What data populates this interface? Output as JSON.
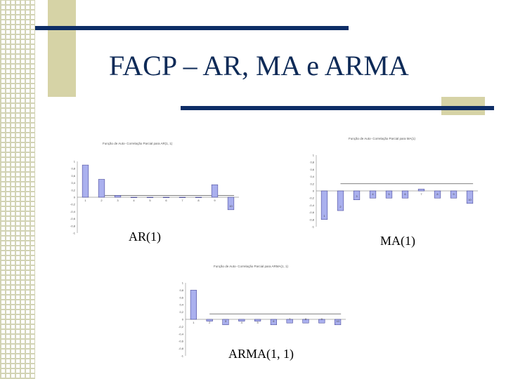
{
  "slide": {
    "title": "FACP – AR, MA e ARMA",
    "captions": {
      "ar": "AR(1)",
      "ma": "MA(1)",
      "arma": "ARMA(1, 1)"
    }
  },
  "colors": {
    "navy": "#0d2d66",
    "tan": "#d6d3a6",
    "bar_fill": "#aab0ee",
    "bar_stroke": "#33338a"
  },
  "chart_data": [
    {
      "type": "bar",
      "title": "Função de Auto- Correlação Parcial para AR(1, 1)",
      "categories": [
        "1",
        "2",
        "3",
        "4",
        "5",
        "6",
        "7",
        "8",
        "9",
        "10"
      ],
      "values": [
        0.9,
        0.5,
        0.05,
        0.0,
        0.0,
        0.0,
        0.0,
        0.0,
        0.35,
        -0.35
      ],
      "ylim": [
        -1,
        1
      ],
      "yticks": [
        "1",
        "0,8",
        "0,6",
        "0,4",
        "0,2",
        "0",
        "-0,2",
        "-0,4",
        "-0,6",
        "-0,8",
        "-1"
      ],
      "band": 0.05
    },
    {
      "type": "bar",
      "title": "Função de Auto- Correlação Parcial para MA(1)",
      "categories": [
        "1",
        "2",
        "3",
        "4",
        "5",
        "6",
        "7",
        "8",
        "9",
        "10"
      ],
      "values": [
        -0.8,
        -0.55,
        -0.25,
        -0.2,
        -0.2,
        -0.2,
        0.05,
        -0.2,
        -0.2,
        -0.35
      ],
      "ylim": [
        -1,
        1
      ],
      "yticks": [
        "1",
        "0,8",
        "0,6",
        "0,4",
        "0,2",
        "0",
        "-0,2",
        "-0,4",
        "-0,6",
        "-0,8",
        "-1"
      ],
      "band": 0.2
    },
    {
      "type": "bar",
      "title": "Função de Auto- Correlação Parcial para ARMA(1, 1)",
      "categories": [
        "1",
        "2",
        "3",
        "4",
        "5",
        "6",
        "7",
        "8",
        "9",
        "10"
      ],
      "values": [
        0.8,
        -0.05,
        -0.15,
        -0.05,
        -0.05,
        -0.15,
        -0.1,
        -0.1,
        -0.1,
        -0.15
      ],
      "ylim": [
        -1,
        1
      ],
      "yticks": [
        "1",
        "0,8",
        "0,6",
        "0,4",
        "0,2",
        "0",
        "-0,2",
        "-0,4",
        "-0,6",
        "-0,8",
        "-1"
      ],
      "band": 0.15
    }
  ]
}
